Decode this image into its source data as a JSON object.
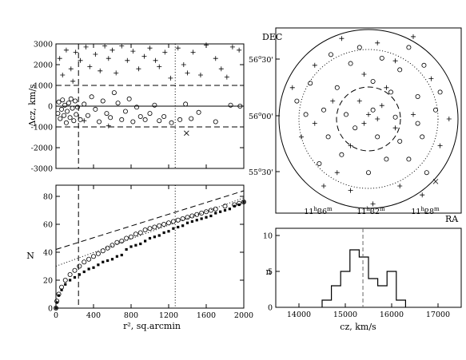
{
  "chart_data": [
    {
      "type": "scatter",
      "panel": "dcz-vs-r2",
      "ylabel": "Δcz, km/s",
      "xlim": [
        0,
        2000
      ],
      "ylim": [
        -3000,
        3000
      ],
      "yticks": [
        "3000",
        "2000",
        "1000",
        "0",
        "-1000",
        "-2000",
        "-3000"
      ],
      "xticks": [
        0,
        400,
        800,
        1200,
        1600,
        2000
      ],
      "vlines_dashed": [
        240
      ],
      "vlines_dotted": [
        1270
      ],
      "hlines_dashed": [
        1000,
        -1000
      ],
      "hline_solid": 0,
      "series": [
        {
          "marker": "circle",
          "points": [
            [
              20,
              -350
            ],
            [
              30,
              200
            ],
            [
              45,
              -600
            ],
            [
              60,
              -150
            ],
            [
              70,
              300
            ],
            [
              85,
              -450
            ],
            [
              95,
              50
            ],
            [
              110,
              -800
            ],
            [
              120,
              -250
            ],
            [
              135,
              150
            ],
            [
              150,
              -550
            ],
            [
              160,
              350
            ],
            [
              175,
              -100
            ],
            [
              190,
              -700
            ],
            [
              205,
              250
            ],
            [
              215,
              -400
            ],
            [
              230,
              -50
            ],
            [
              260,
              -650
            ],
            [
              300,
              100
            ],
            [
              340,
              -450
            ],
            [
              380,
              450
            ],
            [
              420,
              -150
            ],
            [
              460,
              -750
            ],
            [
              500,
              250
            ],
            [
              540,
              -350
            ],
            [
              580,
              -550
            ],
            [
              620,
              650
            ],
            [
              660,
              150
            ],
            [
              700,
              -650
            ],
            [
              740,
              -250
            ],
            [
              780,
              350
            ],
            [
              820,
              -750
            ],
            [
              860,
              -50
            ],
            [
              900,
              -500
            ],
            [
              950,
              -650
            ],
            [
              1000,
              -350
            ],
            [
              1050,
              50
            ],
            [
              1100,
              -700
            ],
            [
              1150,
              -500
            ],
            [
              1230,
              -800
            ],
            [
              1320,
              -650
            ],
            [
              1380,
              100
            ],
            [
              1440,
              -600
            ],
            [
              1520,
              -300
            ],
            [
              1700,
              -750
            ],
            [
              1860,
              50
            ],
            [
              1960,
              0
            ]
          ]
        },
        {
          "marker": "plus",
          "points": [
            [
              40,
              2300
            ],
            [
              70,
              1500
            ],
            [
              110,
              2700
            ],
            [
              160,
              1800
            ],
            [
              210,
              2600
            ],
            [
              260,
              2200
            ],
            [
              320,
              2850
            ],
            [
              360,
              1900
            ],
            [
              420,
              2500
            ],
            [
              470,
              1700
            ],
            [
              520,
              2900
            ],
            [
              560,
              2300
            ],
            [
              600,
              2700
            ],
            [
              640,
              1600
            ],
            [
              700,
              2900
            ],
            [
              760,
              2200
            ],
            [
              820,
              2650
            ],
            [
              880,
              1800
            ],
            [
              940,
              2400
            ],
            [
              1000,
              2800
            ],
            [
              1060,
              2200
            ],
            [
              1100,
              1900
            ],
            [
              1160,
              2600
            ],
            [
              1220,
              1350
            ],
            [
              1300,
              2800
            ],
            [
              1360,
              2000
            ],
            [
              1400,
              1600
            ],
            [
              1460,
              2600
            ],
            [
              1540,
              1500
            ],
            [
              1600,
              2950
            ],
            [
              1700,
              2300
            ],
            [
              1760,
              1800
            ],
            [
              1820,
              1400
            ],
            [
              1880,
              2850
            ],
            [
              1950,
              2700
            ],
            [
              180,
              1200
            ],
            [
              300,
              -700
            ],
            [
              560,
              -950
            ]
          ]
        },
        {
          "marker": "cross",
          "points": [
            [
              1390,
              -1300
            ]
          ]
        }
      ]
    },
    {
      "type": "line",
      "panel": "cumulative-N-vs-r2",
      "xlabel": "r², sq.arcmin",
      "ylabel": "N",
      "xlim": [
        0,
        2000
      ],
      "ylim": [
        0,
        88
      ],
      "xticks": [
        0,
        400,
        800,
        1200,
        1600,
        2000
      ],
      "yticks": [
        0,
        20,
        40,
        60,
        80
      ],
      "vlines_dashed": [
        240
      ],
      "vlines_dotted": [
        1270
      ],
      "fit_lines": [
        {
          "style": "dashed",
          "x": [
            0,
            2000
          ],
          "y": [
            42,
            84
          ]
        },
        {
          "style": "dotted",
          "x": [
            0,
            2000
          ],
          "y": [
            30,
            79
          ]
        }
      ],
      "series": [
        {
          "marker": "circle",
          "x": [
            0,
            10,
            30,
            60,
            100,
            150,
            200,
            250,
            300,
            350,
            400,
            450,
            500,
            550,
            600,
            650,
            700,
            750,
            800,
            850,
            900,
            950,
            1000,
            1050,
            1100,
            1150,
            1200,
            1250,
            1300,
            1350,
            1400,
            1450,
            1500,
            1550,
            1600,
            1650,
            1700,
            1800,
            1900,
            1950,
            2000
          ],
          "y": [
            0,
            5,
            10,
            15,
            20,
            24,
            27,
            30,
            33,
            35,
            37,
            39,
            41,
            43,
            45,
            47,
            48,
            50,
            51,
            53,
            54,
            56,
            57,
            58,
            59,
            60,
            61,
            62,
            63,
            64,
            65,
            66,
            67,
            68,
            69,
            70,
            71,
            73,
            74,
            75,
            76
          ]
        },
        {
          "marker": "filled-square",
          "x": [
            0,
            10,
            30,
            60,
            100,
            150,
            200,
            250,
            300,
            350,
            400,
            450,
            500,
            550,
            600,
            650,
            700,
            750,
            800,
            850,
            900,
            950,
            1000,
            1050,
            1100,
            1150,
            1200,
            1250,
            1300,
            1350,
            1400,
            1450,
            1500,
            1550,
            1600,
            1650,
            1700,
            1750,
            1800,
            1850,
            1900,
            1950,
            2000
          ],
          "y": [
            0,
            4,
            9,
            13,
            17,
            20,
            22,
            24,
            26,
            28,
            29,
            31,
            33,
            34,
            35,
            37,
            38,
            42,
            44,
            45,
            46,
            48,
            50,
            51,
            52,
            54,
            55,
            57,
            58,
            59,
            61,
            62,
            63,
            64,
            65,
            66,
            68,
            69,
            70,
            71,
            73,
            74,
            76
          ]
        }
      ]
    },
    {
      "type": "scatter",
      "panel": "sky-map",
      "xlabel": "RA",
      "ylabel": "DEC",
      "ra_ticks": [
        {
          "h": "11",
          "m": "36"
        },
        {
          "h": "11",
          "m": "32"
        },
        {
          "h": "11",
          "m": "28"
        }
      ],
      "dec_ticks": [
        {
          "d": "56",
          "m": "30'"
        },
        {
          "d": "56",
          "m": "00'"
        },
        {
          "d": "55",
          "m": "30'"
        }
      ],
      "units": {
        "hour": "h",
        "minute": "m",
        "degree": "o"
      },
      "series": [
        {
          "marker": "circle",
          "points": [
            [
              -0.42,
              0.72
            ],
            [
              -0.2,
              0.62
            ],
            [
              0.15,
              0.68
            ],
            [
              0.35,
              0.55
            ],
            [
              0.62,
              0.6
            ],
            [
              -0.65,
              0.4
            ],
            [
              -0.35,
              0.35
            ],
            [
              0.05,
              0.42
            ],
            [
              0.25,
              0.3
            ],
            [
              0.55,
              0.25
            ],
            [
              0.8,
              0.3
            ],
            [
              -0.7,
              0.05
            ],
            [
              -0.5,
              0.1
            ],
            [
              -0.25,
              0.05
            ],
            [
              0.05,
              0.1
            ],
            [
              0.3,
              0.02
            ],
            [
              0.55,
              -0.05
            ],
            [
              0.75,
              0.1
            ],
            [
              -0.45,
              -0.2
            ],
            [
              -0.15,
              -0.1
            ],
            [
              0.1,
              -0.2
            ],
            [
              0.35,
              -0.25
            ],
            [
              0.6,
              -0.2
            ],
            [
              -0.3,
              -0.4
            ],
            [
              0.2,
              -0.45
            ],
            [
              0.45,
              -0.45
            ],
            [
              -0.55,
              -0.5
            ],
            [
              0.0,
              -0.6
            ],
            [
              0.65,
              -0.6
            ],
            [
              -0.1,
              0.8
            ],
            [
              0.45,
              0.8
            ],
            [
              -0.8,
              0.2
            ]
          ]
        },
        {
          "marker": "plus",
          "points": [
            [
              -0.3,
              0.9
            ],
            [
              0.1,
              0.85
            ],
            [
              0.5,
              0.92
            ],
            [
              -0.6,
              0.6
            ],
            [
              -0.05,
              0.5
            ],
            [
              0.3,
              0.65
            ],
            [
              0.7,
              0.45
            ],
            [
              -0.75,
              -0.2
            ],
            [
              -0.4,
              0.2
            ],
            [
              -0.1,
              0.2
            ],
            [
              0.0,
              0.05
            ],
            [
              0.1,
              0.0
            ],
            [
              -0.05,
              -0.05
            ],
            [
              0.15,
              0.15
            ],
            [
              -0.2,
              -0.3
            ],
            [
              0.3,
              -0.1
            ],
            [
              0.5,
              0.05
            ],
            [
              0.8,
              -0.3
            ],
            [
              -0.5,
              -0.75
            ],
            [
              -0.2,
              -0.8
            ],
            [
              0.05,
              -0.95
            ],
            [
              0.35,
              -0.75
            ],
            [
              0.6,
              -0.85
            ],
            [
              -0.85,
              0.35
            ],
            [
              0.9,
              0.0
            ],
            [
              -0.6,
              -0.05
            ],
            [
              0.2,
              0.35
            ],
            [
              -0.35,
              -0.6
            ]
          ]
        },
        {
          "marker": "cross",
          "points": [
            [
              0.75,
              -0.7
            ]
          ]
        }
      ]
    },
    {
      "type": "bar",
      "panel": "cz-histogram",
      "xlabel": "cz, km/s",
      "ylabel": "n",
      "xlim": [
        13500,
        17500
      ],
      "ylim": [
        0,
        11
      ],
      "xticks": [
        14000,
        15000,
        16000,
        17000
      ],
      "yticks": [
        0,
        5,
        10
      ],
      "bin_edges": [
        14500,
        14700,
        14900,
        15100,
        15300,
        15500,
        15700,
        15900,
        16100,
        16300
      ],
      "values": [
        1,
        3,
        5,
        8,
        7,
        4,
        3,
        5,
        1
      ],
      "mean_line": 15380
    }
  ]
}
